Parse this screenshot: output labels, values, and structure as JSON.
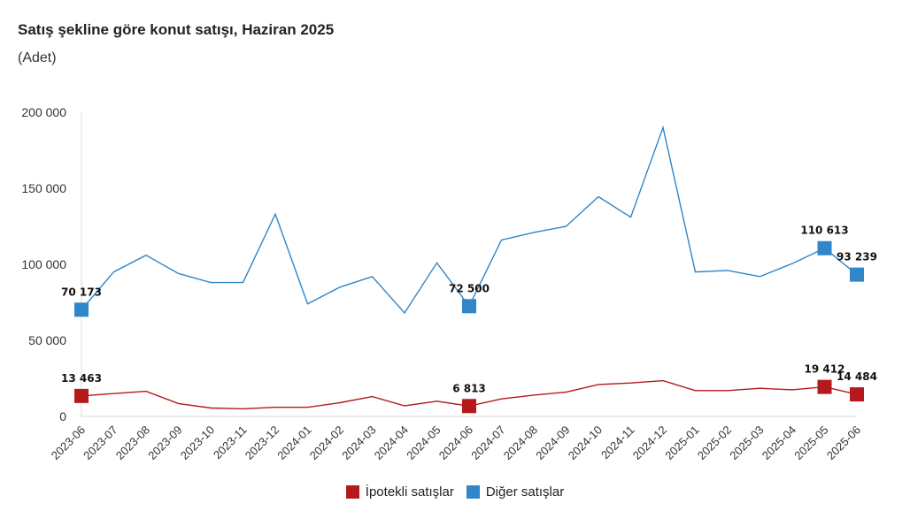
{
  "chart_data": {
    "type": "line",
    "title": "Satış şekline göre konut satışı, Haziran 2025",
    "subtitle": "(Adet)",
    "xlabel": "",
    "ylabel": "",
    "ylim": [
      0,
      200000
    ],
    "yticks": [
      {
        "value": 0,
        "label": "0"
      },
      {
        "value": 50000,
        "label": "50 000"
      },
      {
        "value": 100000,
        "label": "100 000"
      },
      {
        "value": 150000,
        "label": "150 000"
      },
      {
        "value": 200000,
        "label": "200 000"
      }
    ],
    "categories": [
      "2023-06",
      "2023-07",
      "2023-08",
      "2023-09",
      "2023-10",
      "2023-11",
      "2023-12",
      "2024-01",
      "2024-02",
      "2024-03",
      "2024-04",
      "2024-05",
      "2024-06",
      "2024-07",
      "2024-08",
      "2024-09",
      "2024-10",
      "2024-11",
      "2024-12",
      "2025-01",
      "2025-02",
      "2025-03",
      "2025-04",
      "2025-05",
      "2025-06"
    ],
    "grid": false,
    "legend_position": "bottom",
    "series": [
      {
        "name": "İpotekli satışlar",
        "color": "#b5191c",
        "values": [
          13463,
          15000,
          16500,
          8500,
          5500,
          5000,
          6000,
          6000,
          9000,
          13000,
          7000,
          10000,
          6813,
          11500,
          14000,
          16000,
          21000,
          22000,
          23500,
          17000,
          17000,
          18500,
          17500,
          19412,
          14484
        ],
        "markers": [
          {
            "index": 0,
            "label": "13 463"
          },
          {
            "index": 12,
            "label": "6 813"
          },
          {
            "index": 23,
            "label": "19 412"
          },
          {
            "index": 24,
            "label": "14 484"
          }
        ]
      },
      {
        "name": "Diğer satışlar",
        "color": "#2f86c8",
        "values": [
          70173,
          95000,
          106000,
          94000,
          88000,
          88000,
          133000,
          74000,
          85000,
          92000,
          68000,
          101000,
          72500,
          116000,
          121000,
          125000,
          144500,
          131000,
          190000,
          95000,
          96000,
          92000,
          100500,
          110613,
          93239
        ],
        "markers": [
          {
            "index": 0,
            "label": "70 173"
          },
          {
            "index": 12,
            "label": "72 500"
          },
          {
            "index": 23,
            "label": "110 613"
          },
          {
            "index": 24,
            "label": "93 239"
          }
        ]
      }
    ]
  }
}
